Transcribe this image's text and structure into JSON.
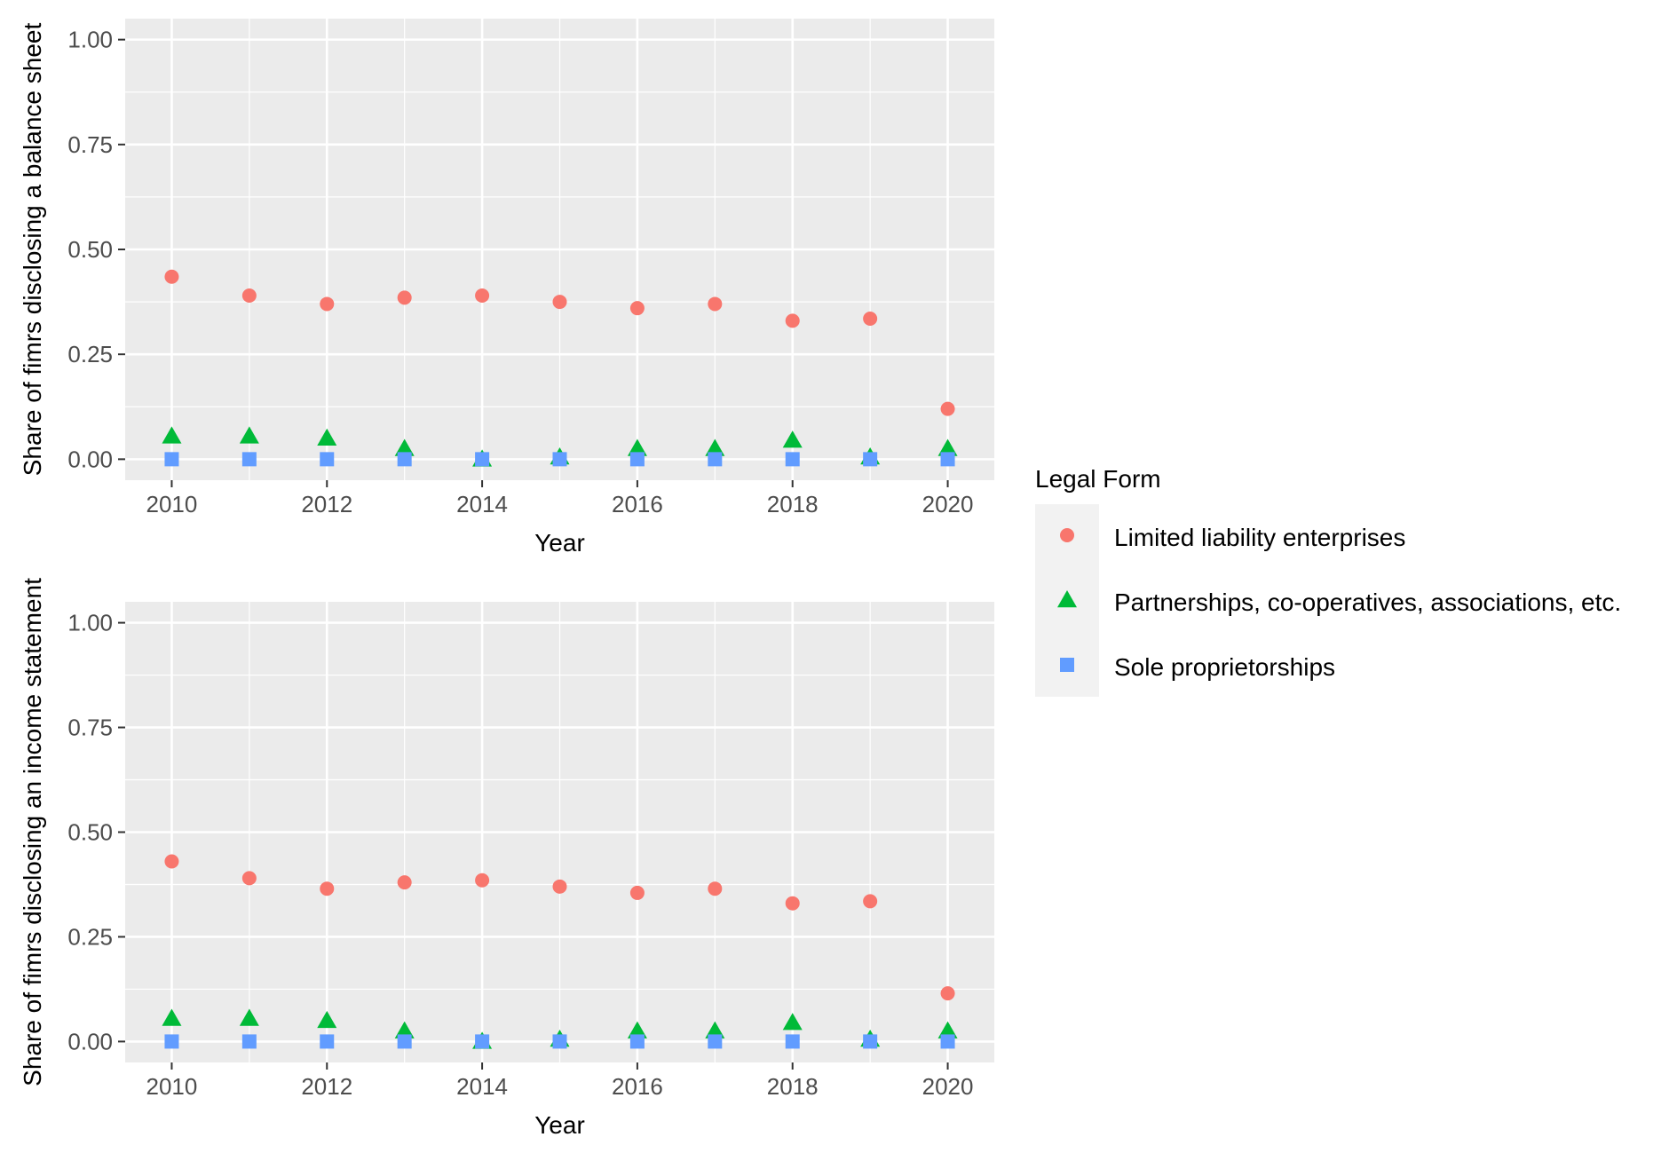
{
  "chart_data": [
    {
      "type": "scatter",
      "xlabel": "Year",
      "ylabel": "Share of fimrs disclosing a balance sheet",
      "xlim": [
        2009.4,
        2020.6
      ],
      "ylim": [
        -0.05,
        1.05
      ],
      "x_ticks": [
        2010,
        2012,
        2014,
        2016,
        2018,
        2020
      ],
      "y_ticks": [
        0.0,
        0.25,
        0.5,
        0.75,
        1.0
      ],
      "x_tick_labels": [
        "2010",
        "2012",
        "2014",
        "2016",
        "2018",
        "2020"
      ],
      "y_tick_labels": [
        "0.00",
        "0.25",
        "0.50",
        "0.75",
        "1.00"
      ],
      "grid": true,
      "x": [
        2010,
        2011,
        2012,
        2013,
        2014,
        2015,
        2016,
        2017,
        2018,
        2019,
        2020
      ],
      "series": [
        {
          "name": "Limited liability enterprises",
          "shape": "circle",
          "color": "#F8766D",
          "values": [
            0.435,
            0.39,
            0.37,
            0.385,
            0.39,
            0.375,
            0.36,
            0.37,
            0.33,
            0.335,
            0.12
          ]
        },
        {
          "name": "Partnerships, co-operatives, associations, etc.",
          "shape": "triangle",
          "color": "#00BA38",
          "values": [
            0.055,
            0.055,
            0.05,
            0.025,
            0.0,
            0.005,
            0.025,
            0.025,
            0.045,
            0.005,
            0.025
          ]
        },
        {
          "name": "Sole proprietorships",
          "shape": "square",
          "color": "#619CFF",
          "values": [
            0.0,
            0.0,
            0.0,
            0.0,
            0.0,
            0.0,
            0.0,
            0.0,
            0.0,
            0.0,
            0.0
          ]
        }
      ]
    },
    {
      "type": "scatter",
      "xlabel": "Year",
      "ylabel": "Share of fimrs disclosing an income statement",
      "xlim": [
        2009.4,
        2020.6
      ],
      "ylim": [
        -0.05,
        1.05
      ],
      "x_ticks": [
        2010,
        2012,
        2014,
        2016,
        2018,
        2020
      ],
      "y_ticks": [
        0.0,
        0.25,
        0.5,
        0.75,
        1.0
      ],
      "x_tick_labels": [
        "2010",
        "2012",
        "2014",
        "2016",
        "2018",
        "2020"
      ],
      "y_tick_labels": [
        "0.00",
        "0.25",
        "0.50",
        "0.75",
        "1.00"
      ],
      "grid": true,
      "x": [
        2010,
        2011,
        2012,
        2013,
        2014,
        2015,
        2016,
        2017,
        2018,
        2019,
        2020
      ],
      "series": [
        {
          "name": "Limited liability enterprises",
          "shape": "circle",
          "color": "#F8766D",
          "values": [
            0.43,
            0.39,
            0.365,
            0.38,
            0.385,
            0.37,
            0.355,
            0.365,
            0.33,
            0.335,
            0.115
          ]
        },
        {
          "name": "Partnerships, co-operatives, associations, etc.",
          "shape": "triangle",
          "color": "#00BA38",
          "values": [
            0.055,
            0.055,
            0.05,
            0.025,
            0.0,
            0.005,
            0.025,
            0.025,
            0.045,
            0.005,
            0.025
          ]
        },
        {
          "name": "Sole proprietorships",
          "shape": "square",
          "color": "#619CFF",
          "values": [
            0.0,
            0.0,
            0.0,
            0.0,
            0.0,
            0.0,
            0.0,
            0.0,
            0.0,
            0.0,
            0.0
          ]
        }
      ]
    }
  ],
  "legend": {
    "title": "Legal Form",
    "placement": "right",
    "items": [
      {
        "label": "Limited liability enterprises",
        "shape": "circle",
        "color": "#F8766D"
      },
      {
        "label": "Partnerships, co-operatives, associations, etc.",
        "shape": "triangle",
        "color": "#00BA38"
      },
      {
        "label": "Sole proprietorships",
        "shape": "square",
        "color": "#619CFF"
      }
    ]
  },
  "theme": {
    "panel_background": "#EBEBEB",
    "grid_color": "#FFFFFF",
    "legend_key_background": "#F2F2F2"
  }
}
